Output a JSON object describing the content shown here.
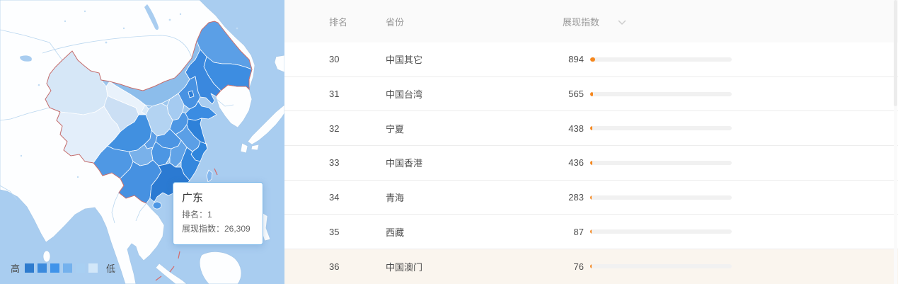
{
  "map": {
    "tooltip": {
      "title": "广东",
      "rank_line": "排名：1",
      "index_line": "展现指数：26,309"
    },
    "legend": {
      "high_label": "高",
      "low_label": "低",
      "colors": [
        "#2e7bce",
        "#3b8add",
        "#3f93ea",
        "#74b1ed",
        "#a8cff2",
        "#d2e7f9"
      ]
    },
    "colors": {
      "sea": "#a9cdf0",
      "foreign_land": "#fdfeff",
      "national_border": "#c36b6b"
    }
  },
  "table": {
    "header": {
      "rank": "排名",
      "province": "省份",
      "index": "展现指数"
    },
    "max_index": 26309,
    "bar_color": "#f5871e",
    "rows": [
      {
        "rank": "30",
        "province": "中国其它",
        "index": "894",
        "value": 894,
        "highlighted": false
      },
      {
        "rank": "31",
        "province": "中国台湾",
        "index": "565",
        "value": 565,
        "highlighted": false
      },
      {
        "rank": "32",
        "province": "宁夏",
        "index": "438",
        "value": 438,
        "highlighted": false
      },
      {
        "rank": "33",
        "province": "中国香港",
        "index": "436",
        "value": 436,
        "highlighted": false
      },
      {
        "rank": "34",
        "province": "青海",
        "index": "283",
        "value": 283,
        "highlighted": false
      },
      {
        "rank": "35",
        "province": "西藏",
        "index": "87",
        "value": 87,
        "highlighted": false
      },
      {
        "rank": "36",
        "province": "中国澳门",
        "index": "76",
        "value": 76,
        "highlighted": true
      }
    ]
  }
}
